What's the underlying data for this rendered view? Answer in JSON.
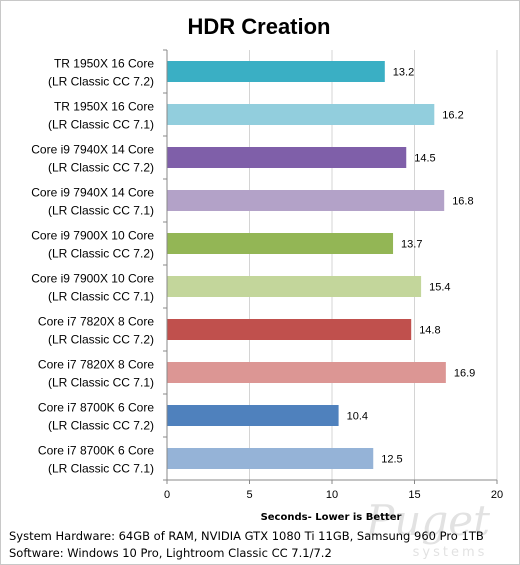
{
  "chart_data": {
    "type": "bar",
    "orientation": "horizontal",
    "title": "HDR Creation",
    "xlabel": "Seconds- Lower is Better",
    "xlim": [
      0,
      20
    ],
    "xticks": [
      "0",
      "5",
      "10",
      "15",
      "20"
    ],
    "gridlines": true,
    "legend": "none",
    "categories": [
      [
        "TR 1950X 16 Core",
        "(LR Classic CC 7.2)"
      ],
      [
        "TR 1950X 16 Core",
        "(LR Classic CC 7.1)"
      ],
      [
        "Core i9 7940X 14 Core",
        "(LR Classic CC 7.2)"
      ],
      [
        "Core i9 7940X 14 Core",
        "(LR Classic CC 7.1)"
      ],
      [
        "Core i9 7900X 10 Core",
        "(LR Classic CC 7.2)"
      ],
      [
        "Core i9 7900X 10 Core",
        "(LR Classic CC 7.1)"
      ],
      [
        "Core i7 7820X 8 Core",
        "(LR Classic CC 7.2)"
      ],
      [
        "Core i7 7820X 8 Core",
        "(LR Classic CC 7.1)"
      ],
      [
        "Core i7 8700K 6 Core",
        "(LR Classic CC 7.2)"
      ],
      [
        "Core i7 8700K 6 Core",
        "(LR Classic CC 7.1)"
      ]
    ],
    "values": [
      13.2,
      16.2,
      14.5,
      16.8,
      13.7,
      15.4,
      14.8,
      16.9,
      10.4,
      12.5
    ],
    "value_labels": [
      "13.2",
      "16.2",
      "14.5",
      "16.8",
      "13.7",
      "15.4",
      "14.8",
      "16.9",
      "10.4",
      "12.5"
    ],
    "colors": [
      "#3aafc4",
      "#92cedd",
      "#7f5fa9",
      "#b3a2c8",
      "#93b655",
      "#c3d69b",
      "#c0504d",
      "#dc9694",
      "#4f81bd",
      "#95b3d7"
    ]
  },
  "footer": {
    "hardware": "System Hardware: 64GB of RAM, NVIDIA GTX 1080  Ti 11GB, Samsung 960 Pro 1TB",
    "software": "Software: Windows 10 Pro, Lightroom Classic CC 7.1/7.2"
  },
  "watermark": {
    "line1": "Puget",
    "line2": "systems"
  }
}
